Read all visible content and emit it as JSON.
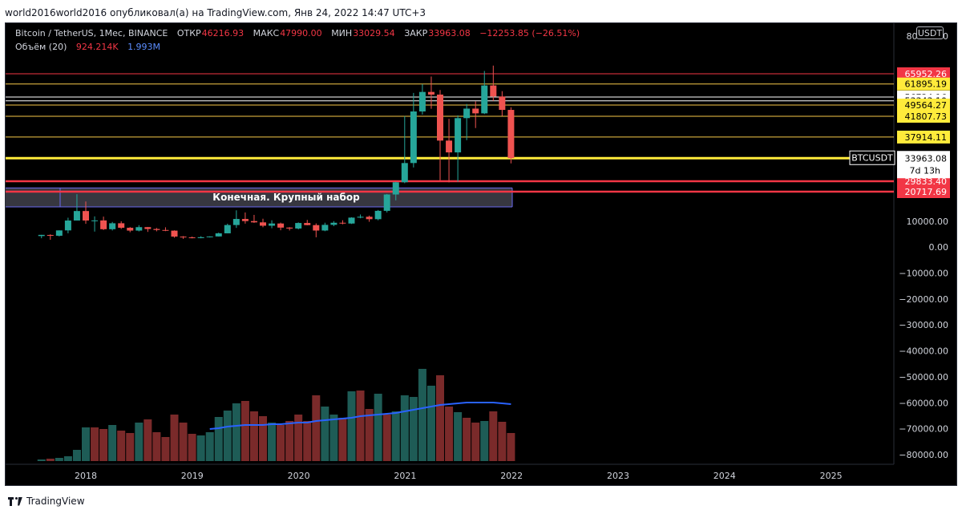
{
  "header": {
    "published_by": "world2016world2016 опубликовал(а) на TradingView.com, Янв 24, 2022 14:47 UTC+3"
  },
  "legend": {
    "symbol": "Bitcoin / TetherUS, 1Мес, BINANCE",
    "open_label": "ОТКР",
    "open_value": "46216.93",
    "high_label": "МАКС",
    "high_value": "47990.00",
    "low_label": "МИН",
    "low_value": "33029.54",
    "close_label": "ЗАКР",
    "close_value": "33963.08",
    "change_value": "−12253.85 (−26.51%)",
    "volume_label": "Объём (20)",
    "volume_value": "924.214K",
    "volume_ma_value": "1.993M"
  },
  "currency_button": "USDT",
  "footer": {
    "brand": "TradingView"
  },
  "chart_data": {
    "type": "candlestick",
    "symbol": "BTCUSDT",
    "timeframe": "1Мес",
    "exchange": "BINANCE",
    "ylim": [
      -85000,
      80000
    ],
    "y_ticks": [
      "80000.00",
      "10000.00",
      "0.00",
      "−10000.00",
      "−20000.00",
      "−30000.00",
      "−40000.00",
      "−50000.00",
      "−60000.00",
      "−70000.00",
      "−80000.00"
    ],
    "x_ticks": [
      "2018",
      "2019",
      "2020",
      "2021",
      "2022",
      "2023",
      "2024",
      "2025"
    ],
    "start_month": "2017-08",
    "months": [
      "2017-08",
      "2017-09",
      "2017-10",
      "2017-11",
      "2017-12",
      "2018-01",
      "2018-02",
      "2018-03",
      "2018-04",
      "2018-05",
      "2018-06",
      "2018-07",
      "2018-08",
      "2018-09",
      "2018-10",
      "2018-11",
      "2018-12",
      "2019-01",
      "2019-02",
      "2019-03",
      "2019-04",
      "2019-05",
      "2019-06",
      "2019-07",
      "2019-08",
      "2019-09",
      "2019-10",
      "2019-11",
      "2019-12",
      "2020-01",
      "2020-02",
      "2020-03",
      "2020-04",
      "2020-05",
      "2020-06",
      "2020-07",
      "2020-08",
      "2020-09",
      "2020-10",
      "2020-11",
      "2020-12",
      "2021-01",
      "2021-02",
      "2021-03",
      "2021-04",
      "2021-05",
      "2021-06",
      "2021-07",
      "2021-08",
      "2021-09",
      "2021-10",
      "2021-11",
      "2021-12",
      "2022-01"
    ],
    "candles": [
      [
        4261,
        4745,
        3400,
        4724
      ],
      [
        4690,
        4939,
        2817,
        4378
      ],
      [
        4378,
        6470,
        4110,
        6463
      ],
      [
        6463,
        11300,
        5325,
        10285
      ],
      [
        10285,
        19798,
        10700,
        13716
      ],
      [
        13716,
        17176,
        9035,
        10285
      ],
      [
        10285,
        11786,
        6000,
        10326
      ],
      [
        10326,
        11700,
        6600,
        6923
      ],
      [
        6923,
        9759,
        6425,
        9246
      ],
      [
        9246,
        10020,
        7032,
        7485
      ],
      [
        7485,
        7760,
        5755,
        6390
      ],
      [
        6390,
        8507,
        6072,
        7730
      ],
      [
        7730,
        7770,
        5880,
        7011
      ],
      [
        7011,
        7410,
        6100,
        6626
      ],
      [
        6626,
        7680,
        6180,
        6371
      ],
      [
        6371,
        6500,
        3652,
        4041
      ],
      [
        4041,
        4230,
        3156,
        3742
      ],
      [
        3742,
        4069,
        3350,
        3457
      ],
      [
        3457,
        4200,
        3380,
        3813
      ],
      [
        3813,
        4140,
        3700,
        4103
      ],
      [
        4103,
        5600,
        4050,
        5320
      ],
      [
        5320,
        9074,
        5300,
        8555
      ],
      [
        8555,
        13970,
        7444,
        10854
      ],
      [
        10854,
        13200,
        9100,
        10082
      ],
      [
        10082,
        12325,
        9400,
        9594
      ],
      [
        9594,
        10950,
        7710,
        8289
      ],
      [
        8289,
        10370,
        7300,
        9152
      ],
      [
        9152,
        9500,
        6515,
        7547
      ],
      [
        7547,
        7744,
        6435,
        7194
      ],
      [
        7194,
        9578,
        6850,
        9350
      ],
      [
        9350,
        10500,
        8442,
        8523
      ],
      [
        8523,
        9188,
        3782,
        6410
      ],
      [
        6410,
        9460,
        6150,
        8625
      ],
      [
        8625,
        10067,
        8100,
        9446
      ],
      [
        9446,
        10380,
        8833,
        9138
      ],
      [
        9138,
        11444,
        8970,
        11335
      ],
      [
        11335,
        12468,
        11100,
        11649
      ],
      [
        11649,
        12067,
        9825,
        10776
      ],
      [
        10776,
        14100,
        10375,
        13791
      ],
      [
        13791,
        19863,
        13195,
        19695
      ],
      [
        19695,
        29300,
        17550,
        28923
      ],
      [
        28923,
        41950,
        28130,
        33092
      ],
      [
        33092,
        58352,
        32300,
        45137
      ],
      [
        45137,
        61844,
        43000,
        58740
      ],
      [
        58740,
        64854,
        47000,
        57694
      ],
      [
        57694,
        59500,
        30000,
        37253
      ],
      [
        37253,
        41330,
        28805,
        35045
      ],
      [
        35045,
        42448,
        29278,
        41461
      ],
      [
        41461,
        50500,
        37332,
        47101
      ],
      [
        47101,
        52920,
        39600,
        43824
      ],
      [
        43824,
        67000,
        43283,
        61300
      ],
      [
        61300,
        69000,
        53256,
        56950
      ],
      [
        56950,
        59053,
        42000,
        46217
      ],
      [
        46217,
        47990,
        33029,
        33963
      ]
    ],
    "volume": [
      [
        2,
        "up"
      ],
      [
        3,
        "down"
      ],
      [
        4,
        "up"
      ],
      [
        6,
        "up"
      ],
      [
        14,
        "up"
      ],
      [
        42,
        "up"
      ],
      [
        42,
        "down"
      ],
      [
        40,
        "down"
      ],
      [
        45,
        "up"
      ],
      [
        38,
        "down"
      ],
      [
        35,
        "down"
      ],
      [
        48,
        "up"
      ],
      [
        52,
        "down"
      ],
      [
        36,
        "down"
      ],
      [
        30,
        "down"
      ],
      [
        58,
        "down"
      ],
      [
        48,
        "down"
      ],
      [
        34,
        "down"
      ],
      [
        32,
        "up"
      ],
      [
        36,
        "up"
      ],
      [
        55,
        "up"
      ],
      [
        63,
        "up"
      ],
      [
        72,
        "up"
      ],
      [
        75,
        "down"
      ],
      [
        62,
        "down"
      ],
      [
        56,
        "down"
      ],
      [
        48,
        "up"
      ],
      [
        45,
        "down"
      ],
      [
        50,
        "down"
      ],
      [
        58,
        "down"
      ],
      [
        50,
        "down"
      ],
      [
        82,
        "down"
      ],
      [
        68,
        "up"
      ],
      [
        58,
        "up"
      ],
      [
        54,
        "down"
      ],
      [
        87,
        "up"
      ],
      [
        88,
        "down"
      ],
      [
        65,
        "down"
      ],
      [
        84,
        "up"
      ],
      [
        58,
        "down"
      ],
      [
        62,
        "up"
      ],
      [
        82,
        "up"
      ],
      [
        80,
        "up"
      ],
      [
        115,
        "up"
      ],
      [
        94,
        "up"
      ],
      [
        107,
        "down"
      ],
      [
        68,
        "down"
      ],
      [
        61,
        "up"
      ],
      [
        54,
        "down"
      ],
      [
        48,
        "down"
      ],
      [
        50,
        "up"
      ],
      [
        62,
        "down"
      ],
      [
        49,
        "down"
      ],
      [
        35,
        "down"
      ]
    ],
    "volume_ma": [
      null,
      null,
      null,
      null,
      null,
      null,
      null,
      null,
      null,
      null,
      null,
      null,
      null,
      null,
      null,
      null,
      null,
      null,
      null,
      40,
      41,
      43,
      44,
      45,
      45,
      45,
      46,
      46,
      47,
      48,
      48,
      50,
      51,
      52,
      53,
      54,
      56,
      57,
      58,
      59,
      60,
      62,
      64,
      66,
      68,
      70,
      71,
      72,
      73,
      73,
      73,
      73,
      72,
      71
    ],
    "price_levels": [
      {
        "label": "65952.26",
        "value": 65952.26,
        "line": "#f23645",
        "badge_bg": "#f23645",
        "badge_fg": "#ffffff"
      },
      {
        "label": "61895.19",
        "value": 61895.19,
        "line": "#f7c948",
        "badge_bg": "#ffeb3b",
        "badge_fg": "#000000"
      },
      {
        "label": "56724.16",
        "value": 56724.16,
        "line": "#ffffff",
        "badge_bg": "#ffffff",
        "badge_fg": "#000000"
      },
      {
        "label": "53343.10",
        "value": 53343.1,
        "line": "#ffffff",
        "badge_bg": "#ffffff",
        "badge_fg": "#000000"
      },
      {
        "label": "49564.27",
        "value": 49564.27,
        "line": "#f7c948",
        "badge_bg": "#ffeb3b",
        "badge_fg": "#000000"
      },
      {
        "label": "41807.73",
        "value": 41807.73,
        "line": "#f7c948",
        "badge_bg": "#ffeb3b",
        "badge_fg": "#000000"
      },
      {
        "label": "37914.11",
        "value": 37914.11,
        "line": "#f7c948",
        "badge_bg": "#ffeb3b",
        "badge_fg": "#000000"
      },
      {
        "label": "34051.18",
        "value": 34051.18,
        "line": "#f7c948",
        "badge_bg": "#ffeb3b",
        "badge_fg": "#000000"
      },
      {
        "label": "29833.40",
        "value": 29833.4,
        "line": "#f23645",
        "badge_bg": "#f23645",
        "badge_fg": "#ffffff"
      },
      {
        "label": "20717.69",
        "value": 20717.69,
        "line": "#f23645",
        "badge_bg": "#f23645",
        "badge_fg": "#ffffff"
      }
    ],
    "last_price": {
      "label": "33963.08",
      "symbol_tag": "BTCUSDT",
      "countdown": "7d 13h"
    },
    "zone": {
      "top": 24000,
      "bottom": 15200,
      "annotation": "Конечная. Крупный набор"
    },
    "colors": {
      "up": "#26a69a",
      "down": "#ef5350",
      "vol_up": "#1e5c56",
      "vol_down": "#7a2a2a",
      "ma": "#2962ff",
      "zone": "#4a4a55",
      "axis_text": "#d1d4dc",
      "grid": "#1a1d25"
    }
  }
}
